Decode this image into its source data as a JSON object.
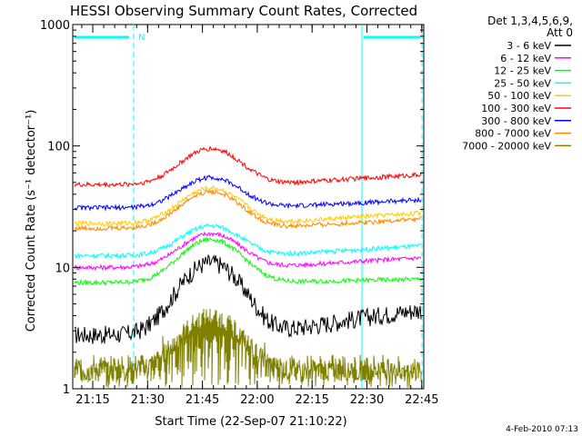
{
  "chart_data": {
    "type": "line",
    "title": "HESSI Observing Summary Count Rates, Corrected",
    "xlabel": "Start Time (22-Sep-07 21:10:22)",
    "ylabel": "Corrected Count Rate (s⁻¹ detector⁻¹)",
    "yscale": "log",
    "ylim": [
      1,
      1000
    ],
    "xlim_minutes": [
      21.17,
      22.78
    ],
    "x_ticks": [
      "21:15",
      "21:30",
      "21:45",
      "22:00",
      "22:15",
      "22:30",
      "22:45"
    ],
    "y_ticks": [
      "1",
      "10",
      "100",
      "1000"
    ],
    "legend_title": "Det 1,3,4,5,6,9,",
    "legend_subtitle": "Att 0",
    "legend_position": "right",
    "timestamp": "4-Feb-2010 07:13",
    "annotation_N": "N",
    "series": [
      {
        "name": "3 - 6 keV",
        "color": "#000000",
        "baseline": 2.8,
        "peak": 11,
        "end": 4.5
      },
      {
        "name": "6 - 12 keV",
        "color": "#ff00ff",
        "baseline": 10,
        "peak": 19,
        "end": 12
      },
      {
        "name": "12 - 25 keV",
        "color": "#00ff00",
        "baseline": 7.5,
        "peak": 17,
        "end": 8
      },
      {
        "name": "25 - 50 keV",
        "color": "#00ffff",
        "baseline": 12.5,
        "peak": 22,
        "end": 15
      },
      {
        "name": "50 - 100 keV",
        "color": "#ffcc00",
        "baseline": 23,
        "peak": 45,
        "end": 28
      },
      {
        "name": "100 - 300 keV",
        "color": "#ff0000",
        "baseline": 48,
        "peak": 95,
        "end": 58
      },
      {
        "name": "300 - 800 keV",
        "color": "#0000ff",
        "baseline": 31,
        "peak": 55,
        "end": 36
      },
      {
        "name": "800 - 7000 keV",
        "color": "#ff8800",
        "baseline": 21,
        "peak": 42,
        "end": 25
      },
      {
        "name": "7000 - 20000 keV",
        "color": "#808000",
        "baseline": 1.4,
        "peak": 4,
        "end": 1.4
      }
    ]
  }
}
